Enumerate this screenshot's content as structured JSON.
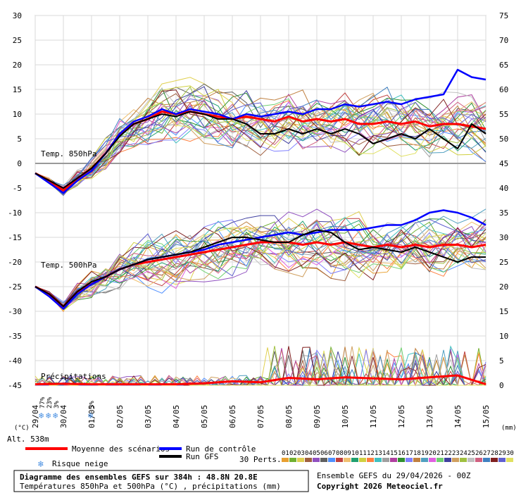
{
  "chart_data": {
    "type": "line",
    "title": "Diagramme des ensembles GEFS sur 384h : 48.8N 20.8E",
    "subtitle": "Températures 850hPa et 500hPa (°C) , précipitations (mm)",
    "left_axis_unit": "(°C)",
    "right_axis_unit": "(mm)",
    "altitude_label": "Alt. 538m",
    "left_ticks": [
      30,
      25,
      20,
      15,
      10,
      5,
      0,
      -5,
      -10,
      -15,
      -20,
      -25,
      -30,
      -35,
      -40,
      -45
    ],
    "right_ticks": [
      75,
      70,
      65,
      60,
      55,
      50,
      45,
      40,
      35,
      30,
      25,
      20,
      15,
      10,
      5,
      0
    ],
    "left_ylim": [
      -45,
      30
    ],
    "right_ylim": [
      0,
      75
    ],
    "x_tick_labels": [
      "29/04",
      "30/04",
      "01/05",
      "02/05",
      "03/05",
      "04/05",
      "05/05",
      "06/05",
      "07/05",
      "08/05",
      "09/05",
      "10/05",
      "11/05",
      "12/05",
      "13/05",
      "14/05",
      "15/05"
    ],
    "panel_labels": {
      "t850": "Temp. 850hPa",
      "t500": "Temp. 500hPa",
      "precip": "Précipitations"
    },
    "snow_risk": [
      {
        "x": "29/04 06h",
        "percent": "77%"
      },
      {
        "x": "29/04 12h",
        "percent": "23%"
      },
      {
        "x": "29/04 18h",
        "percent": "3%"
      },
      {
        "x": "01/05",
        "percent": "3%"
      }
    ],
    "series": [
      {
        "name": "Moyenne des scénarios",
        "color": "#ff0000",
        "panel": "t850",
        "x": [
          "29/04 00h",
          "29/04 12h",
          "30/04 00h",
          "30/04 12h",
          "01/05 00h",
          "01/05 12h",
          "02/05 00h",
          "02/05 12h",
          "03/05 00h",
          "03/05 12h",
          "04/05 00h",
          "04/05 12h",
          "05/05 00h",
          "05/05 12h",
          "06/05 00h",
          "06/05 12h",
          "07/05 00h",
          "07/05 12h",
          "08/05 00h",
          "08/05 12h",
          "09/05 00h",
          "09/05 12h",
          "10/05 00h",
          "10/05 12h",
          "11/05 00h",
          "11/05 12h",
          "12/05 00h",
          "12/05 12h",
          "13/05 00h",
          "13/05 12h",
          "14/05 00h",
          "14/05 12h",
          "15/05 00h"
        ],
        "values": [
          -2,
          -3.5,
          -5.5,
          -3,
          -1,
          2,
          6,
          8,
          9,
          10.5,
          10,
          10.5,
          10,
          9.5,
          9,
          9.5,
          9,
          8.5,
          9.5,
          8.5,
          9,
          8.5,
          9,
          8,
          8,
          8.5,
          8,
          8.5,
          7.5,
          8,
          8,
          7.5,
          7
        ]
      },
      {
        "name": "Run de contrôle",
        "color": "#0000ff",
        "panel": "t850",
        "x": [
          "29/04 00h",
          "29/04 12h",
          "30/04 00h",
          "30/04 12h",
          "01/05 00h",
          "01/05 12h",
          "02/05 00h",
          "02/05 12h",
          "03/05 00h",
          "03/05 12h",
          "04/05 00h",
          "04/05 12h",
          "05/05 00h",
          "05/05 12h",
          "06/05 00h",
          "06/05 12h",
          "07/05 00h",
          "07/05 12h",
          "08/05 00h",
          "08/05 12h",
          "09/05 00h",
          "09/05 12h",
          "10/05 00h",
          "10/05 12h",
          "11/05 00h",
          "11/05 12h",
          "12/05 00h",
          "12/05 12h",
          "13/05 00h",
          "13/05 12h",
          "14/05 00h",
          "14/05 12h",
          "15/05 00h"
        ],
        "values": [
          -2,
          -4,
          -6,
          -3.5,
          -1.5,
          2,
          6,
          8.5,
          9.5,
          11,
          10,
          11,
          10.5,
          10,
          9,
          10,
          9.5,
          10,
          10.5,
          10,
          11,
          11,
          12,
          11.5,
          12,
          12.5,
          12,
          13,
          13.5,
          14,
          19,
          17.5,
          17
        ]
      },
      {
        "name": "Run GFS",
        "color": "#000000",
        "panel": "t850",
        "x": [
          "29/04 00h",
          "29/04 12h",
          "30/04 00h",
          "30/04 12h",
          "01/05 00h",
          "01/05 12h",
          "02/05 00h",
          "02/05 12h",
          "03/05 00h",
          "03/05 12h",
          "04/05 00h",
          "04/05 12h",
          "05/05 00h",
          "05/05 12h",
          "06/05 00h",
          "06/05 12h",
          "07/05 00h",
          "07/05 12h",
          "08/05 00h",
          "08/05 12h",
          "09/05 00h",
          "09/05 12h",
          "10/05 00h",
          "10/05 12h",
          "11/05 00h",
          "11/05 12h",
          "12/05 00h",
          "12/05 12h",
          "13/05 00h",
          "13/05 12h",
          "14/05 00h",
          "14/05 12h",
          "15/05 00h"
        ],
        "values": [
          -2,
          -3.5,
          -5,
          -3,
          -1,
          2,
          5.5,
          8,
          9,
          10,
          9.5,
          10.5,
          10,
          9,
          9,
          8,
          6,
          6,
          7,
          6,
          7,
          6,
          7,
          6,
          4,
          5,
          6,
          5,
          7,
          5,
          3,
          8,
          6
        ]
      },
      {
        "name": "Moyenne des scénarios",
        "color": "#ff0000",
        "panel": "t500",
        "x": [
          "29/04 00h",
          "29/04 12h",
          "30/04 00h",
          "30/04 12h",
          "01/05 00h",
          "01/05 12h",
          "02/05 00h",
          "02/05 12h",
          "03/05 00h",
          "03/05 12h",
          "04/05 00h",
          "04/05 12h",
          "05/05 00h",
          "05/05 12h",
          "06/05 00h",
          "06/05 12h",
          "07/05 00h",
          "07/05 12h",
          "08/05 00h",
          "08/05 12h",
          "09/05 00h",
          "09/05 12h",
          "10/05 00h",
          "10/05 12h",
          "11/05 00h",
          "11/05 12h",
          "12/05 00h",
          "12/05 12h",
          "13/05 00h",
          "13/05 12h",
          "14/05 00h",
          "14/05 12h",
          "15/05 00h"
        ],
        "values": [
          -25,
          -26.5,
          -29,
          -26,
          -24.5,
          -23,
          -21.5,
          -20.5,
          -20,
          -19.5,
          -19,
          -18.5,
          -18,
          -17.5,
          -17,
          -16.5,
          -16,
          -16,
          -16,
          -16.5,
          -16,
          -16.5,
          -16,
          -16.5,
          -17,
          -16.5,
          -17,
          -16.5,
          -17,
          -16.5,
          -16.5,
          -17,
          -16.5
        ]
      },
      {
        "name": "Run de contrôle",
        "color": "#0000ff",
        "panel": "t500",
        "x": [
          "29/04 00h",
          "29/04 12h",
          "30/04 00h",
          "30/04 12h",
          "01/05 00h",
          "01/05 12h",
          "02/05 00h",
          "02/05 12h",
          "03/05 00h",
          "03/05 12h",
          "04/05 00h",
          "04/05 12h",
          "05/05 00h",
          "05/05 12h",
          "06/05 00h",
          "06/05 12h",
          "07/05 00h",
          "07/05 12h",
          "08/05 00h",
          "08/05 12h",
          "09/05 00h",
          "09/05 12h",
          "10/05 00h",
          "10/05 12h",
          "11/05 00h",
          "11/05 12h",
          "12/05 00h",
          "12/05 12h",
          "13/05 00h",
          "13/05 12h",
          "14/05 00h",
          "14/05 12h",
          "15/05 00h"
        ],
        "values": [
          -25,
          -27,
          -29.5,
          -26.5,
          -24.5,
          -23,
          -21.5,
          -20.5,
          -19.5,
          -19,
          -18.5,
          -18,
          -17.5,
          -16.5,
          -16,
          -15.5,
          -15,
          -14.5,
          -14,
          -14.5,
          -14,
          -13.5,
          -13.5,
          -13.5,
          -13,
          -12.5,
          -12.5,
          -11.5,
          -10,
          -9.5,
          -10,
          -11,
          -12.5
        ]
      },
      {
        "name": "Run GFS",
        "color": "#000000",
        "panel": "t500",
        "x": [
          "29/04 00h",
          "29/04 12h",
          "30/04 00h",
          "30/04 12h",
          "01/05 00h",
          "01/05 12h",
          "02/05 00h",
          "02/05 12h",
          "03/05 00h",
          "03/05 12h",
          "04/05 00h",
          "04/05 12h",
          "05/05 00h",
          "05/05 12h",
          "06/05 00h",
          "06/05 12h",
          "07/05 00h",
          "07/05 12h",
          "08/05 00h",
          "08/05 12h",
          "09/05 00h",
          "09/05 12h",
          "10/05 00h",
          "10/05 12h",
          "11/05 00h",
          "11/05 12h",
          "12/05 00h",
          "12/05 12h",
          "13/05 00h",
          "13/05 12h",
          "14/05 00h",
          "14/05 12h",
          "15/05 00h"
        ],
        "values": [
          -25,
          -26.5,
          -29,
          -26,
          -24,
          -23,
          -21.5,
          -20.5,
          -19.5,
          -19,
          -18.5,
          -18,
          -17,
          -16,
          -15,
          -15,
          -15.5,
          -16,
          -16,
          -14.5,
          -13.5,
          -14,
          -16,
          -17.5,
          -17,
          -17.5,
          -18,
          -17,
          -18,
          -19,
          -20,
          -19,
          -19
        ]
      },
      {
        "name": "Moyenne des scénarios",
        "color": "#ff0000",
        "panel": "precip",
        "x": [
          "29/04",
          "30/04",
          "01/05",
          "02/05",
          "03/05",
          "04/05",
          "05/05",
          "06/05",
          "07/05",
          "08/05",
          "09/05",
          "10/05",
          "11/05",
          "12/05",
          "13/05",
          "14/05",
          "15/05"
        ],
        "values": [
          0.2,
          0.3,
          0.2,
          0.2,
          0.2,
          0.2,
          0.4,
          0.8,
          0.6,
          1.5,
          1.2,
          1.6,
          1.4,
          1.2,
          1.6,
          2.0,
          0.2
        ]
      }
    ]
  },
  "legend": {
    "mean_label": "Moyenne des scénarios",
    "control_label": "Run de contrôle",
    "gfs_label": "Run GFS",
    "snow_label": "Risque neige",
    "perts_label": "30 Perts.",
    "member_numbers": [
      "01",
      "02",
      "03",
      "04",
      "05",
      "06",
      "07",
      "08",
      "09",
      "10",
      "11",
      "12",
      "13",
      "14",
      "15",
      "16",
      "17",
      "18",
      "19",
      "20",
      "21",
      "22",
      "23",
      "24",
      "25",
      "26",
      "27",
      "28",
      "29",
      "30"
    ],
    "member_colors": [
      "#e8a030",
      "#70b030",
      "#e0d050",
      "#a06040",
      "#9050c0",
      "#606060",
      "#5090ff",
      "#c04040",
      "#f0c070",
      "#20a070",
      "#d0d040",
      "#ff8040",
      "#40c0c0",
      "#a0a0a0",
      "#b040a0",
      "#309030",
      "#8080ff",
      "#c08040",
      "#50a0c0",
      "#e060e0",
      "#70d070",
      "#4040a0",
      "#d0a060",
      "#a0c040",
      "#c0c0c0",
      "#d06080",
      "#4080c0",
      "#802020",
      "#6060d0",
      "#e0e060"
    ]
  },
  "footer": {
    "title": "Diagramme des ensembles GEFS sur 384h : 48.8N 20.8E",
    "subtitle": "Températures 850hPa et 500hPa (°C) , précipitations (mm)",
    "run_info": "Ensemble GEFS du 29/04/2026 - 00Z",
    "copyright": "Copyright 2026 Meteociel.fr"
  }
}
